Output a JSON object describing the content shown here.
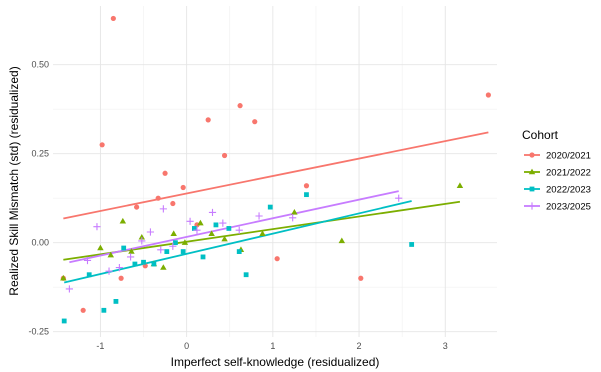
{
  "chart_data": {
    "type": "scatter",
    "xlabel": "Imperfect self-knowledge (residualized)",
    "ylabel": "Realized Skill Mismatch (std) (residualized)",
    "xlim": [
      -1.55,
      3.6
    ],
    "ylim": [
      -0.265,
      0.665
    ],
    "x_ticks": [
      -1,
      0,
      1,
      2,
      3
    ],
    "y_ticks": [
      -0.25,
      0.0,
      0.25,
      0.5
    ],
    "y_tick_labels": [
      "-0.25",
      "0.00",
      "0.25",
      "0.50"
    ],
    "grid": true,
    "legend": {
      "title": "Cohort",
      "placement": "right"
    },
    "series": [
      {
        "name": "2020/2021",
        "color": "#F8766D",
        "marker": "circle",
        "points": [
          [
            -1.43,
            -0.1
          ],
          [
            -1.2,
            -0.19
          ],
          [
            -0.98,
            0.275
          ],
          [
            -0.85,
            0.63
          ],
          [
            -0.76,
            -0.1
          ],
          [
            -0.58,
            0.1
          ],
          [
            -0.48,
            -0.065
          ],
          [
            -0.33,
            0.125
          ],
          [
            -0.25,
            0.195
          ],
          [
            -0.16,
            0.11
          ],
          [
            -0.04,
            0.155
          ],
          [
            0.12,
            0.05
          ],
          [
            0.25,
            0.345
          ],
          [
            0.44,
            0.245
          ],
          [
            0.62,
            0.385
          ],
          [
            0.79,
            0.34
          ],
          [
            1.05,
            -0.045
          ],
          [
            1.39,
            0.16
          ],
          [
            2.02,
            -0.1
          ],
          [
            3.5,
            0.415
          ]
        ],
        "fit": {
          "x": [
            -1.43,
            3.5
          ],
          "y": [
            0.068,
            0.31
          ]
        }
      },
      {
        "name": "2021/2022",
        "color": "#7CAE00",
        "marker": "triangle",
        "points": [
          [
            -1.43,
            -0.1
          ],
          [
            -1.0,
            -0.015
          ],
          [
            -0.88,
            -0.035
          ],
          [
            -0.74,
            0.06
          ],
          [
            -0.64,
            -0.025
          ],
          [
            -0.52,
            0.015
          ],
          [
            -0.38,
            -0.06
          ],
          [
            -0.27,
            -0.07
          ],
          [
            -0.15,
            0.025
          ],
          [
            -0.02,
            0.0
          ],
          [
            0.16,
            0.055
          ],
          [
            0.29,
            0.025
          ],
          [
            0.44,
            0.01
          ],
          [
            0.63,
            -0.02
          ],
          [
            0.88,
            0.025
          ],
          [
            1.25,
            0.085
          ],
          [
            1.8,
            0.005
          ],
          [
            3.17,
            0.16
          ]
        ],
        "fit": {
          "x": [
            -1.43,
            3.17
          ],
          "y": [
            -0.048,
            0.115
          ]
        }
      },
      {
        "name": "2022/2023",
        "color": "#00BFC4",
        "marker": "square",
        "points": [
          [
            -1.42,
            -0.22
          ],
          [
            -1.13,
            -0.09
          ],
          [
            -0.96,
            -0.19
          ],
          [
            -0.82,
            -0.165
          ],
          [
            -0.73,
            -0.015
          ],
          [
            -0.6,
            -0.06
          ],
          [
            -0.5,
            -0.055
          ],
          [
            -0.38,
            -0.06
          ],
          [
            -0.23,
            -0.025
          ],
          [
            -0.13,
            0.0
          ],
          [
            -0.04,
            -0.025
          ],
          [
            0.09,
            0.04
          ],
          [
            0.19,
            -0.04
          ],
          [
            0.34,
            0.05
          ],
          [
            0.49,
            0.04
          ],
          [
            0.61,
            -0.025
          ],
          [
            0.69,
            -0.09
          ],
          [
            0.97,
            0.1
          ],
          [
            1.39,
            0.135
          ],
          [
            2.61,
            -0.005
          ]
        ],
        "fit": {
          "x": [
            -1.42,
            2.61
          ],
          "y": [
            -0.112,
            0.117
          ]
        }
      },
      {
        "name": "2023/2025",
        "color": "#C77CFF",
        "marker": "plus",
        "points": [
          [
            -1.36,
            -0.13
          ],
          [
            -1.15,
            -0.05
          ],
          [
            -1.04,
            0.045
          ],
          [
            -0.9,
            -0.08
          ],
          [
            -0.78,
            -0.07
          ],
          [
            -0.65,
            -0.04
          ],
          [
            -0.52,
            0.005
          ],
          [
            -0.42,
            0.03
          ],
          [
            -0.3,
            -0.02
          ],
          [
            -0.27,
            0.095
          ],
          [
            -0.16,
            -0.01
          ],
          [
            0.04,
            0.06
          ],
          [
            0.12,
            0.035
          ],
          [
            0.3,
            0.085
          ],
          [
            0.42,
            0.055
          ],
          [
            0.61,
            0.035
          ],
          [
            0.84,
            0.075
          ],
          [
            1.23,
            0.07
          ],
          [
            2.46,
            0.125
          ]
        ],
        "fit": {
          "x": [
            -1.36,
            2.46
          ],
          "y": [
            -0.055,
            0.145
          ]
        }
      }
    ]
  }
}
